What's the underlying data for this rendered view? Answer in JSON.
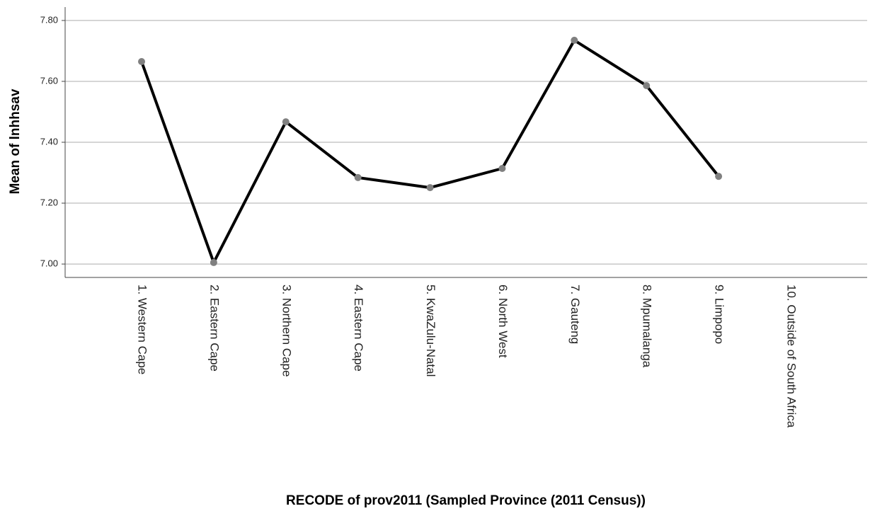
{
  "chart_data": {
    "type": "line",
    "x_label": "RECODE of prov2011 (Sampled Province (2011 Census))",
    "y_label": "Mean of lnhhsav",
    "categories": [
      "1. Western Cape",
      "2. Eastern Cape",
      "3. Northern Cape",
      "4. Eastern Cape",
      "5. KwaZulu-Natal",
      "6. North West",
      "7. Gauteng",
      "8. Mpumalanga",
      "9. Limpopo",
      "10. Outside of South Africa"
    ],
    "values": [
      7.665,
      7.005,
      7.467,
      7.284,
      7.251,
      7.314,
      7.735,
      7.586,
      7.288,
      null
    ],
    "color": "#000000",
    "marker_color": "#808080",
    "ylim": [
      6.956,
      7.844
    ],
    "yticks": [
      {
        "value": 7.0,
        "label": "7.00"
      },
      {
        "value": 7.2,
        "label": "7.20"
      },
      {
        "value": 7.4,
        "label": "7.40"
      },
      {
        "value": 7.6,
        "label": "7.60"
      },
      {
        "value": 7.8,
        "label": "7.80"
      }
    ],
    "grid": true
  }
}
